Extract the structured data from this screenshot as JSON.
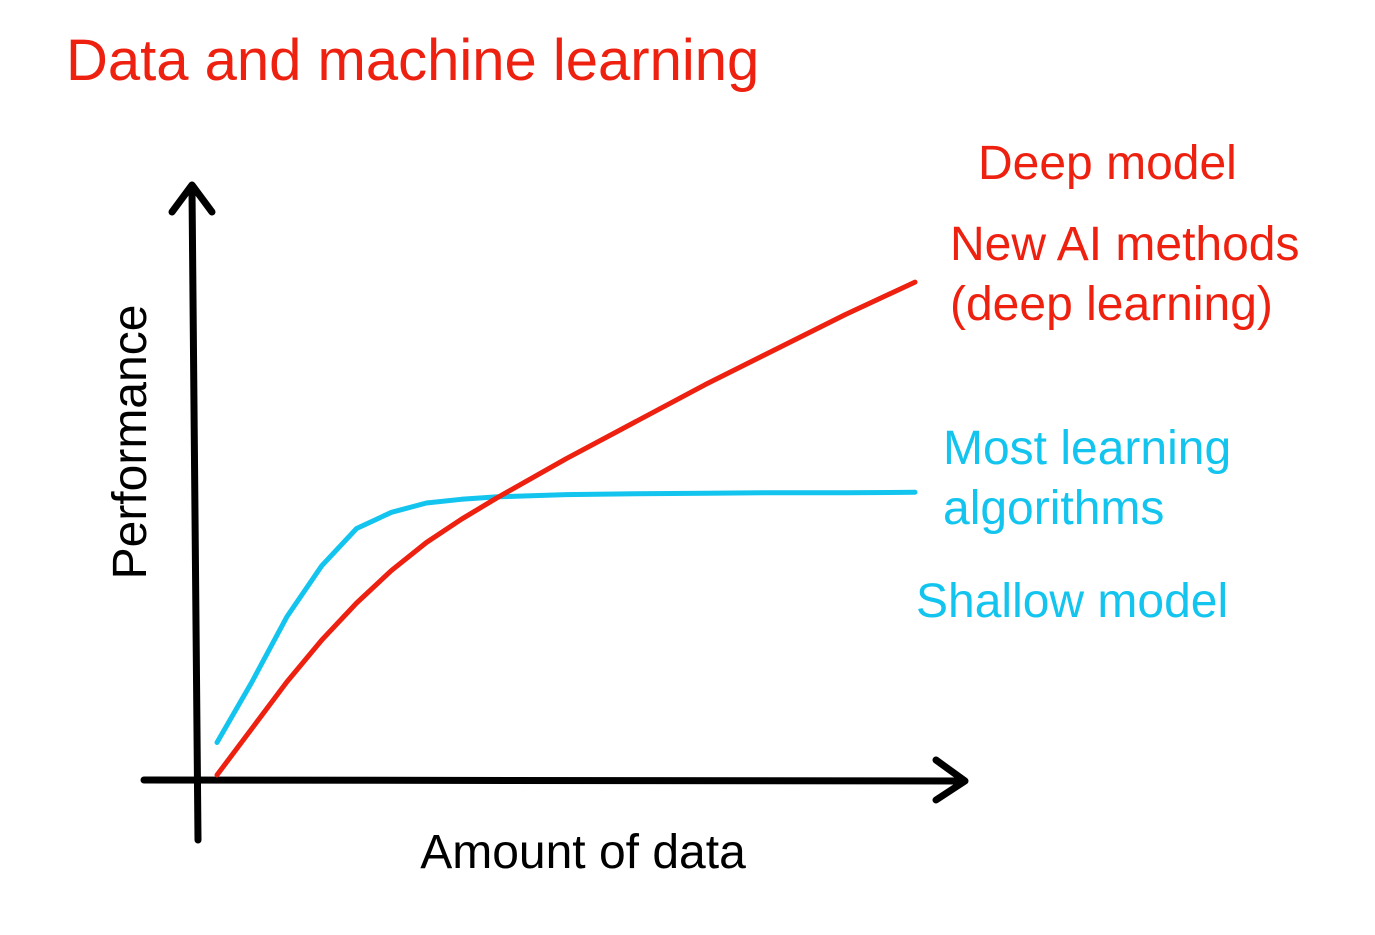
{
  "colors": {
    "deep": "#ee2010",
    "shallow": "#12c4ee",
    "axis": "#000000",
    "text": "#000000"
  },
  "chart_data": {
    "type": "line",
    "title": "Data and machine learning",
    "xlabel": "Amount of data",
    "ylabel": "Performance",
    "xlim": [
      0,
      100
    ],
    "ylim": [
      0,
      100
    ],
    "grid": false,
    "ticks": false,
    "series": [
      {
        "key": "deep",
        "values_x": [
          0,
          5,
          10,
          15,
          20,
          25,
          30,
          35,
          40,
          50,
          60,
          70,
          80,
          90,
          100
        ],
        "values_y": [
          0,
          10,
          20,
          29,
          37,
          44,
          50,
          55,
          59.5,
          68,
          76,
          84,
          91.5,
          99,
          106
        ],
        "label_top": "Deep model",
        "label_lines": [
          "New AI methods",
          "(deep learning)"
        ]
      },
      {
        "key": "shallow",
        "values_x": [
          0,
          5,
          10,
          15,
          20,
          25,
          30,
          35,
          40,
          50,
          60,
          70,
          80,
          90,
          100
        ],
        "values_y": [
          7,
          20,
          34,
          45,
          53,
          56.5,
          58.5,
          59.3,
          59.8,
          60.3,
          60.5,
          60.6,
          60.7,
          60.7,
          60.8
        ],
        "label_lines": [
          "Most learning",
          "algorithms"
        ],
        "label_bottom": "Shallow model"
      }
    ]
  }
}
